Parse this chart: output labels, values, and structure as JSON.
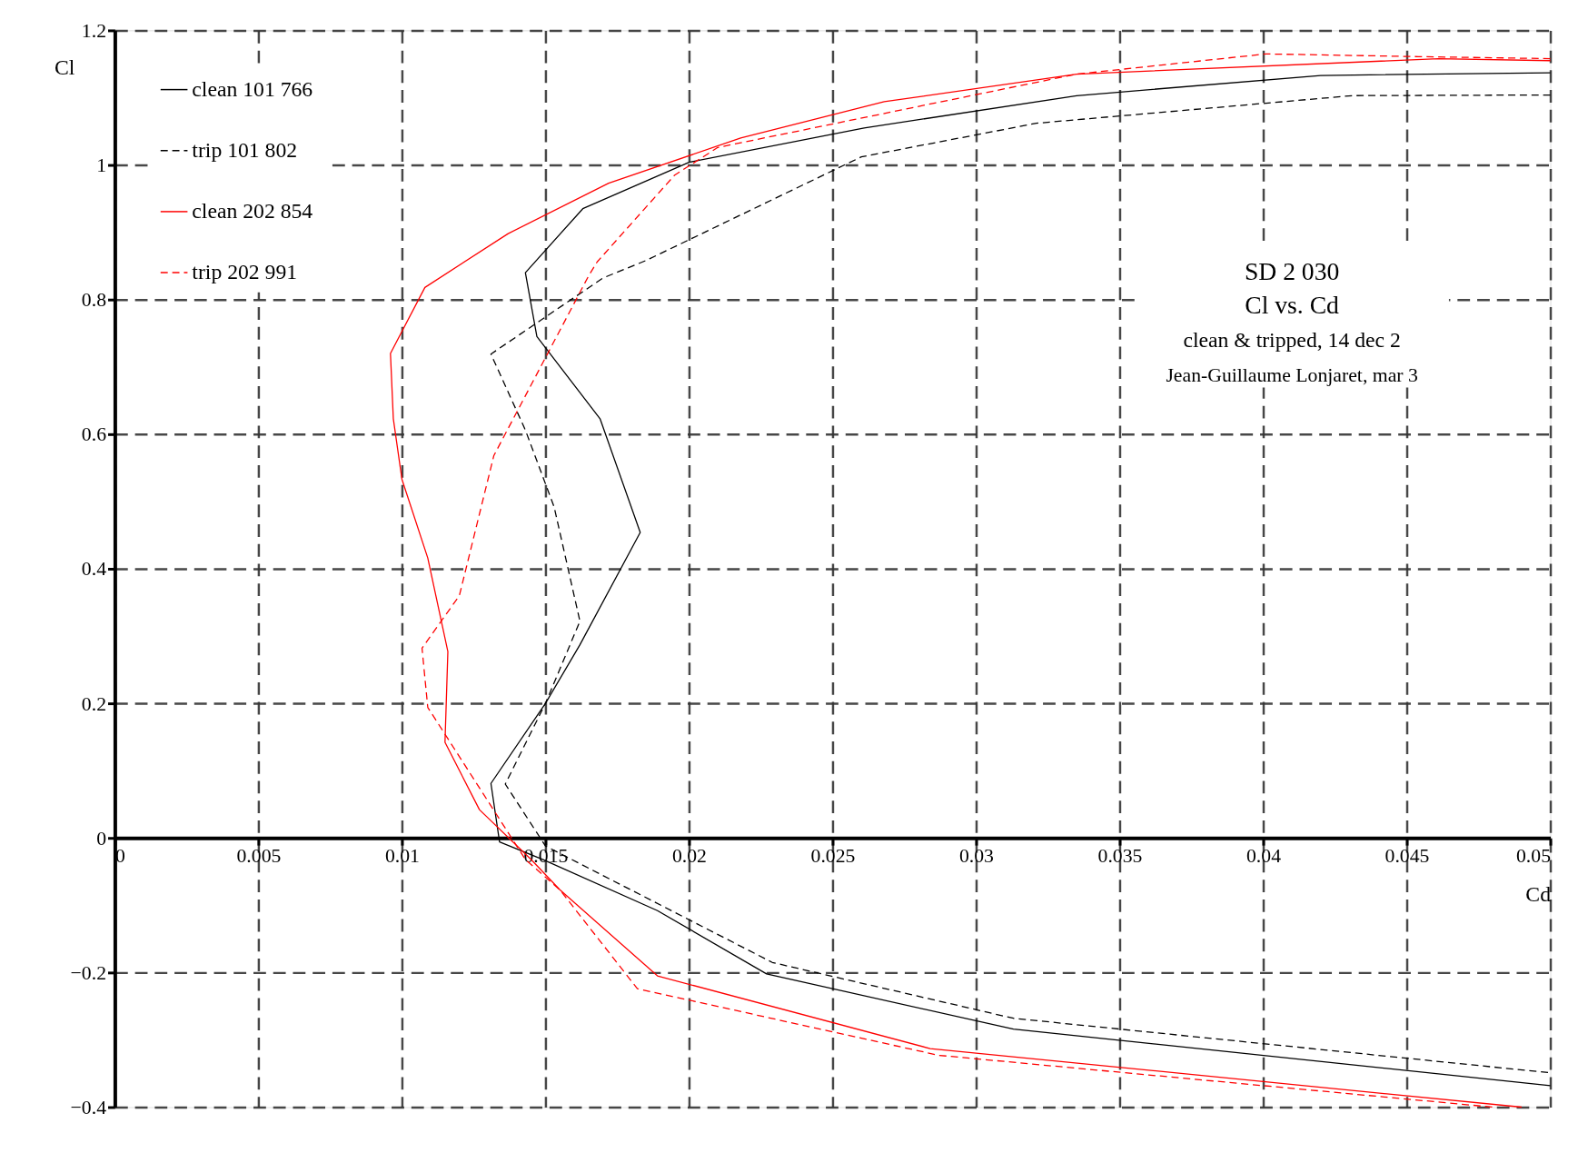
{
  "chart_data": {
    "type": "line",
    "xlabel": "Cd",
    "ylabel": "Cl",
    "annotations": [
      "SD 2 030",
      "Cl vs. Cd",
      "clean & tripped, 14 dec 2",
      "Jean-Guillaume Lonjaret, mar 3"
    ],
    "xlim": [
      0,
      0.05
    ],
    "ylim": [
      -0.4,
      1.2
    ],
    "xticks": [
      0,
      0.005,
      0.01,
      0.015,
      0.02,
      0.025,
      0.03,
      0.035,
      0.04,
      0.045,
      0.05
    ],
    "yticks": [
      -0.4,
      -0.2,
      0,
      0.2,
      0.4,
      0.6,
      0.8,
      1,
      1.2
    ],
    "grid": true,
    "legend": "top left",
    "marker": "none",
    "series": [
      {
        "name": "clean  101 766",
        "color": "#000000",
        "line_style": "solid",
        "x": [
          0.05,
          0.042,
          0.0335,
          0.0261,
          0.02,
          0.0163,
          0.0143,
          0.0147,
          0.0169,
          0.0183,
          0.0162,
          0.015,
          0.0131,
          0.0134,
          0.0149,
          0.0189,
          0.0227,
          0.0313,
          0.05
        ],
        "values": [
          1.137,
          1.133,
          1.103,
          1.055,
          1.004,
          0.935,
          0.84,
          0.745,
          0.623,
          0.454,
          0.287,
          0.2,
          0.081,
          -0.006,
          -0.032,
          -0.108,
          -0.202,
          -0.284,
          -0.368
        ]
      },
      {
        "name": "trip  101 802",
        "color": "#000000",
        "line_style": "dashed",
        "x": [
          0.05,
          0.0431,
          0.0321,
          0.026,
          0.0185,
          0.017,
          0.0131,
          0.0143,
          0.0153,
          0.0162,
          0.015,
          0.0136,
          0.015,
          0.0229,
          0.0313,
          0.05
        ],
        "values": [
          1.104,
          1.103,
          1.062,
          1.012,
          0.858,
          0.832,
          0.719,
          0.606,
          0.492,
          0.322,
          0.2,
          0.08,
          -0.012,
          -0.185,
          -0.268,
          -0.349
        ]
      },
      {
        "name": "clean  202 854",
        "color": "#ff0000",
        "line_style": "solid",
        "x": [
          0.05,
          0.0461,
          0.0335,
          0.0268,
          0.0218,
          0.0172,
          0.0137,
          0.0108,
          0.0096,
          0.0097,
          0.01,
          0.0109,
          0.0116,
          0.0115,
          0.0127,
          0.0145,
          0.0155,
          0.0189,
          0.0284,
          0.049
        ],
        "values": [
          1.155,
          1.158,
          1.135,
          1.094,
          1.04,
          0.973,
          0.898,
          0.818,
          0.72,
          0.623,
          0.533,
          0.416,
          0.277,
          0.142,
          0.042,
          -0.032,
          -0.077,
          -0.205,
          -0.313,
          -0.4
        ]
      },
      {
        "name": "trip  202 991",
        "color": "#ff0000",
        "line_style": "dashed",
        "x": [
          0.05,
          0.0454,
          0.0401,
          0.0335,
          0.021,
          0.0195,
          0.0168,
          0.0165,
          0.0132,
          0.012,
          0.0107,
          0.0109,
          0.0143,
          0.0155,
          0.0182,
          0.0287,
          0.048
        ],
        "values": [
          1.158,
          1.161,
          1.165,
          1.135,
          1.026,
          0.985,
          0.856,
          0.835,
          0.568,
          0.36,
          0.282,
          0.194,
          -0.032,
          -0.077,
          -0.224,
          -0.323,
          -0.4
        ]
      }
    ]
  }
}
